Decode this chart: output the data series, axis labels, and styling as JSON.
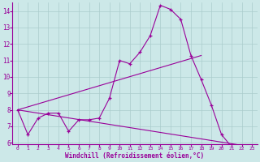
{
  "line1_x": [
    0,
    1,
    2,
    3,
    4,
    5,
    6,
    7,
    8,
    9,
    10,
    11,
    12,
    13,
    14,
    15,
    16,
    17,
    18,
    19,
    20,
    21,
    22,
    23
  ],
  "line1_y": [
    8.0,
    6.5,
    7.5,
    7.8,
    7.8,
    6.7,
    7.4,
    7.4,
    7.5,
    8.7,
    11.0,
    10.8,
    11.5,
    12.5,
    14.35,
    14.1,
    13.5,
    11.3,
    9.85,
    8.3,
    6.5,
    5.75,
    5.75,
    5.75
  ],
  "line2_x": [
    0,
    18
  ],
  "line2_y": [
    8.0,
    11.3
  ],
  "line3_x": [
    0,
    23
  ],
  "line3_y": [
    8.0,
    5.75
  ],
  "color": "#990099",
  "bg_color": "#cce8e8",
  "grid_color": "#aacccc",
  "xlabel": "Windchill (Refroidissement éolien,°C)",
  "xlim": [
    -0.5,
    23.5
  ],
  "ylim": [
    5.9,
    14.5
  ],
  "yticks": [
    6,
    7,
    8,
    9,
    10,
    11,
    12,
    13,
    14
  ],
  "xticks": [
    0,
    1,
    2,
    3,
    4,
    5,
    6,
    7,
    8,
    9,
    10,
    11,
    12,
    13,
    14,
    15,
    16,
    17,
    18,
    19,
    20,
    21,
    22,
    23
  ]
}
